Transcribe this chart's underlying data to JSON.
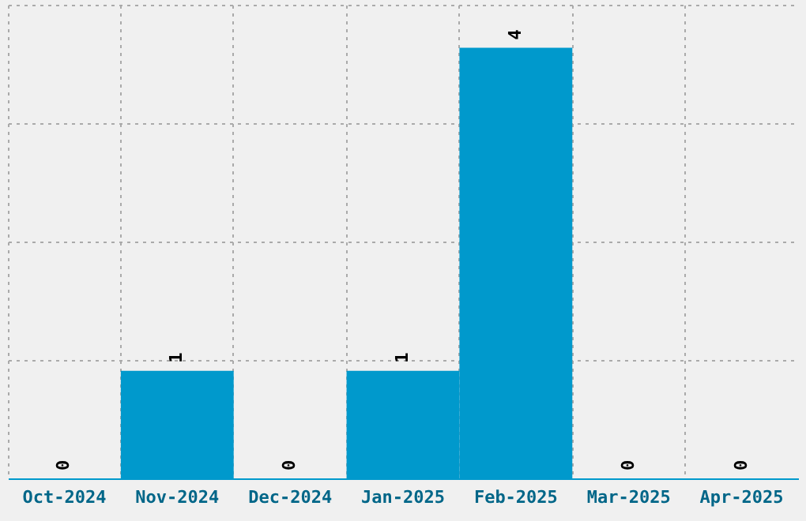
{
  "chart_data": {
    "type": "bar",
    "categories": [
      "Oct-2024",
      "Nov-2024",
      "Dec-2024",
      "Jan-2025",
      "Feb-2025",
      "Mar-2025",
      "Apr-2025"
    ],
    "values": [
      0,
      1,
      0,
      1,
      4,
      0,
      0
    ],
    "color": "#0099cc",
    "ylim": [
      0,
      4.4
    ],
    "yticks": [
      {
        "value": 0,
        "label": null
      },
      {
        "value": 1.1,
        "label": null
      },
      {
        "value": 2.2,
        "label": null
      },
      {
        "value": 3.3,
        "label": null
      },
      {
        "value": 4.4,
        "label": null
      }
    ],
    "grid": true,
    "data_labels": true,
    "tick_labels": "x"
  }
}
